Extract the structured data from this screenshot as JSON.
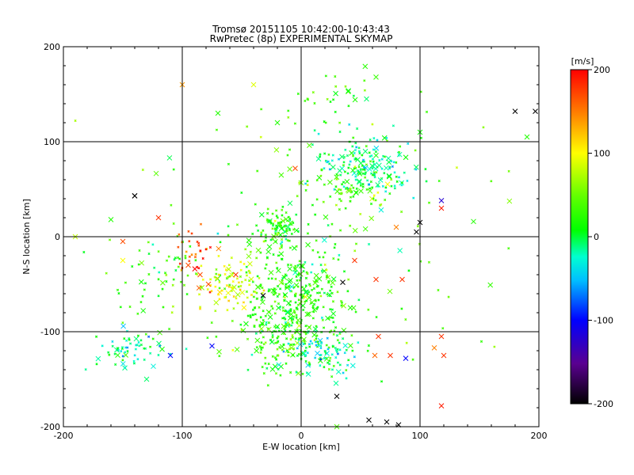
{
  "chart_data": {
    "type": "scatter",
    "title": "Tromsø 20151105 10:42:00-10:43:43",
    "subtitle": "RwPretec (8p) EXPERIMENTAL SKYMAP",
    "xlabel": "E-W location [km]",
    "ylabel": "N-S location [km]",
    "xlim": [
      -200,
      200
    ],
    "ylim": [
      -200,
      200
    ],
    "xticks": [
      -200,
      -100,
      0,
      100,
      200
    ],
    "yticks": [
      -200,
      -100,
      0,
      100,
      200
    ],
    "grid": true,
    "colorbar": {
      "label": "[m/s]",
      "range": [
        -200,
        200
      ],
      "ticks": [
        200,
        100,
        0,
        -100,
        -200
      ],
      "colormap": "rainbow (black-purple-blue-cyan-green-yellow-red)"
    },
    "clusters": [
      {
        "x": -20,
        "y": 10,
        "sx": 8,
        "sy": 12,
        "n": 90,
        "v": 20
      },
      {
        "x": -5,
        "y": -60,
        "sx": 25,
        "sy": 30,
        "n": 320,
        "v": 20
      },
      {
        "x": -60,
        "y": -50,
        "sx": 14,
        "sy": 14,
        "n": 80,
        "v": 90
      },
      {
        "x": -10,
        "y": -110,
        "sx": 20,
        "sy": 18,
        "n": 150,
        "v": 30
      },
      {
        "x": 20,
        "y": -125,
        "sx": 15,
        "sy": 12,
        "n": 80,
        "v": -20
      },
      {
        "x": 55,
        "y": 75,
        "sx": 20,
        "sy": 15,
        "n": 180,
        "v": -10
      },
      {
        "x": 40,
        "y": 50,
        "sx": 20,
        "sy": 10,
        "n": 50,
        "v": 40
      },
      {
        "x": -145,
        "y": -120,
        "sx": 15,
        "sy": 10,
        "n": 60,
        "v": -15
      },
      {
        "x": -120,
        "y": -50,
        "sx": 20,
        "sy": 25,
        "n": 50,
        "v": 20
      },
      {
        "x": 20,
        "y": 145,
        "sx": 20,
        "sy": 15,
        "n": 25,
        "v": 30
      },
      {
        "x": 0,
        "y": 0,
        "sx": 90,
        "sy": 90,
        "n": 140,
        "v": 40
      },
      {
        "x": -90,
        "y": -20,
        "sx": 8,
        "sy": 15,
        "n": 30,
        "v": 170
      }
    ],
    "points": [
      {
        "x": 180,
        "y": 132,
        "v": -200
      },
      {
        "x": 197,
        "y": 132,
        "v": -200
      },
      {
        "x": -140,
        "y": 43,
        "v": -200
      },
      {
        "x": -140,
        "y": 43,
        "v": -200
      },
      {
        "x": 97,
        "y": 5,
        "v": -200
      },
      {
        "x": 100,
        "y": 15,
        "v": -200
      },
      {
        "x": 57,
        "y": -193,
        "v": -200
      },
      {
        "x": 72,
        "y": -195,
        "v": -200
      },
      {
        "x": 82,
        "y": -198,
        "v": -200
      },
      {
        "x": 30,
        "y": -168,
        "v": -200
      },
      {
        "x": 35,
        "y": -48,
        "v": -200
      },
      {
        "x": -32,
        "y": -62,
        "v": -200
      },
      {
        "x": 118,
        "y": 38,
        "v": -120
      },
      {
        "x": 118,
        "y": 30,
        "v": 190
      },
      {
        "x": 118,
        "y": -178,
        "v": 190
      },
      {
        "x": 118,
        "y": -105,
        "v": 180
      },
      {
        "x": 120,
        "y": -125,
        "v": 180
      },
      {
        "x": 112,
        "y": -117,
        "v": 150
      },
      {
        "x": 65,
        "y": -105,
        "v": 180
      },
      {
        "x": 75,
        "y": -125,
        "v": 180
      },
      {
        "x": 62,
        "y": -125,
        "v": 160
      },
      {
        "x": 85,
        "y": -45,
        "v": 180
      },
      {
        "x": 63,
        "y": -45,
        "v": 180
      },
      {
        "x": 45,
        "y": -25,
        "v": 180
      },
      {
        "x": 80,
        "y": 10,
        "v": 150
      },
      {
        "x": -5,
        "y": 72,
        "v": 170
      },
      {
        "x": -85,
        "y": -40,
        "v": 170
      },
      {
        "x": -95,
        "y": -30,
        "v": 170
      },
      {
        "x": -78,
        "y": -50,
        "v": 170
      },
      {
        "x": -120,
        "y": 20,
        "v": 180
      },
      {
        "x": -55,
        "y": -40,
        "v": 180
      },
      {
        "x": -150,
        "y": -5,
        "v": 170
      },
      {
        "x": -100,
        "y": 160,
        "v": 140
      },
      {
        "x": -40,
        "y": 160,
        "v": 90
      },
      {
        "x": -190,
        "y": 0,
        "v": 80
      },
      {
        "x": -150,
        "y": -25,
        "v": 100
      },
      {
        "x": -70,
        "y": 130,
        "v": 20
      },
      {
        "x": -20,
        "y": 120,
        "v": 20
      },
      {
        "x": 100,
        "y": 110,
        "v": 10
      },
      {
        "x": 190,
        "y": 105,
        "v": 20
      },
      {
        "x": 145,
        "y": 16,
        "v": 20
      },
      {
        "x": 30,
        "y": -200,
        "v": 40
      },
      {
        "x": 88,
        "y": -128,
        "v": -100
      },
      {
        "x": -75,
        "y": -115,
        "v": -100
      },
      {
        "x": -110,
        "y": -125,
        "v": -100
      },
      {
        "x": 55,
        "y": 145,
        "v": -10
      },
      {
        "x": 63,
        "y": 168,
        "v": 30
      },
      {
        "x": -160,
        "y": 18,
        "v": 20
      },
      {
        "x": -130,
        "y": -150,
        "v": -10
      }
    ]
  }
}
